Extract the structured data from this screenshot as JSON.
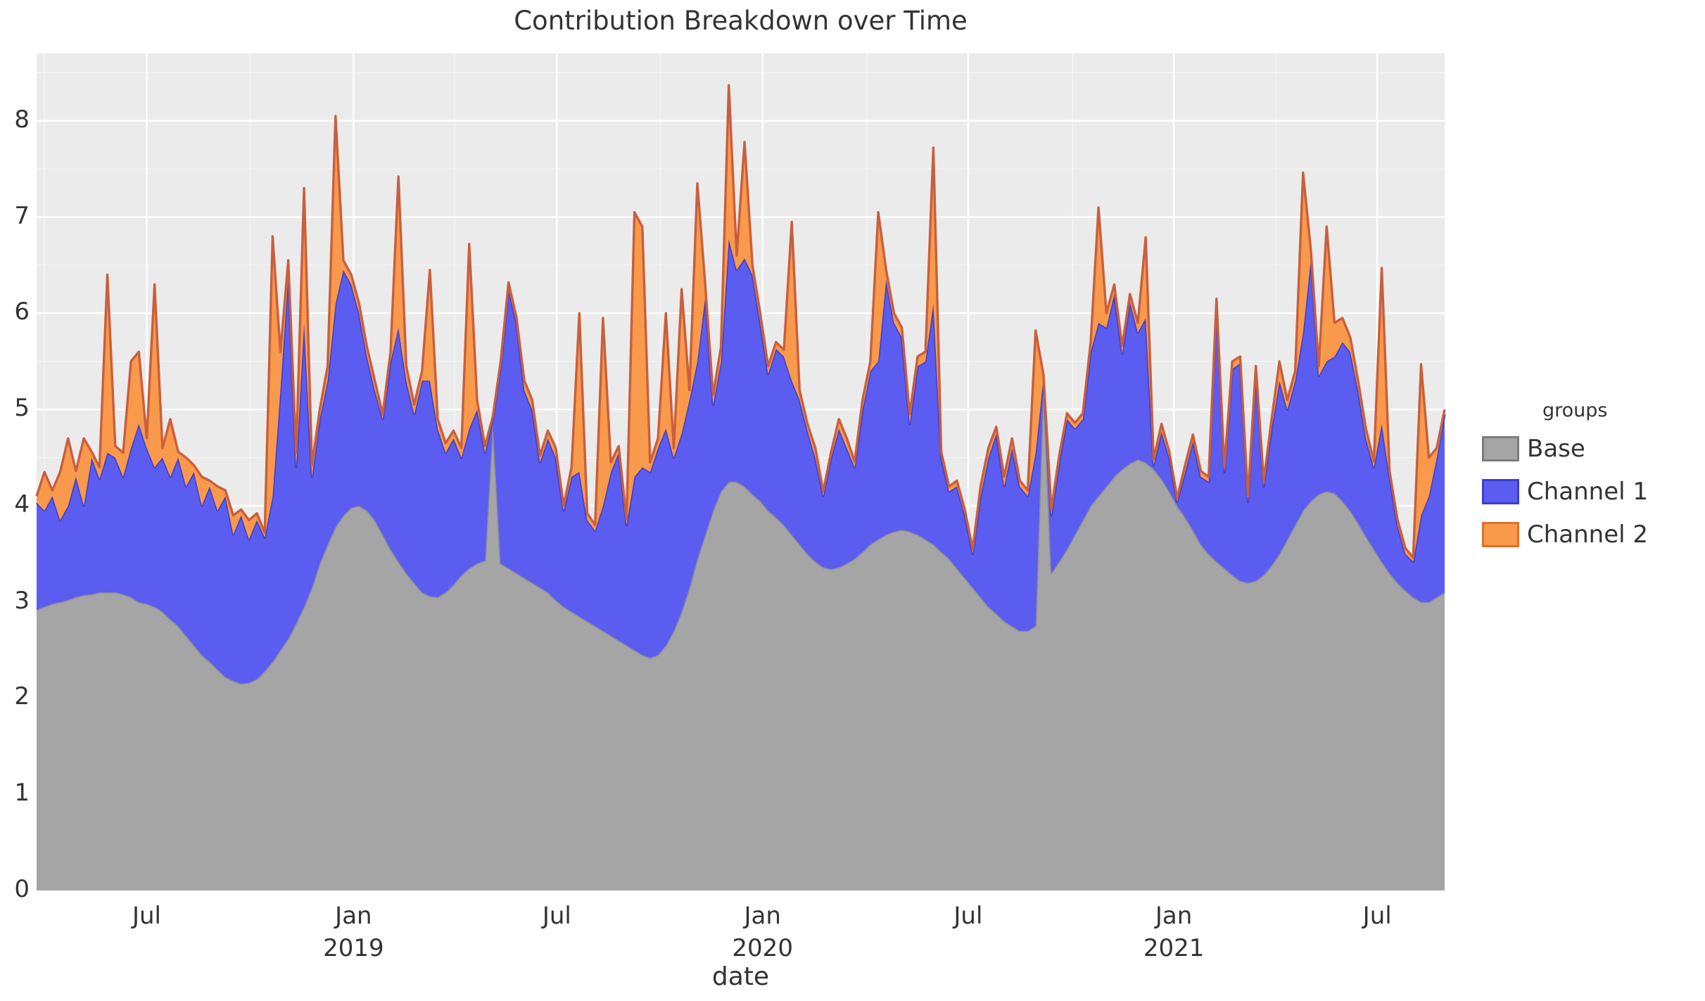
{
  "title": "Contribution Breakdown over Time",
  "axes": {
    "x_label": "date",
    "y_ticks": [
      0,
      1,
      2,
      3,
      4,
      5,
      6,
      7,
      8
    ],
    "y_max": 8.7,
    "x_ticks": [
      {
        "label": "Jul",
        "year": "",
        "week": 14.0
      },
      {
        "label": "Jan",
        "year": "2019",
        "week": 40.29
      },
      {
        "label": "Jul",
        "year": "",
        "week": 66.14
      },
      {
        "label": "Jan",
        "year": "2020",
        "week": 92.29
      },
      {
        "label": "Jul",
        "year": "",
        "week": 118.43
      },
      {
        "label": "Jan",
        "year": "2021",
        "week": 144.57
      },
      {
        "label": "Jul",
        "year": "",
        "week": 170.43
      }
    ],
    "x_minor_weeks": [
      1.0,
      27.14,
      53.14,
      79.29,
      105.57,
      131.71,
      157.57
    ],
    "grid_on": true
  },
  "legend": {
    "title": "groups",
    "items": [
      {
        "label": "Base",
        "fill": "#a5a5a5",
        "stroke": "#7c7c7c"
      },
      {
        "label": "Channel 1",
        "fill": "#5b5cf0",
        "stroke": "#3d3ecc"
      },
      {
        "label": "Channel 2",
        "fill": "#f9994b",
        "stroke": "#e0702a"
      }
    ]
  },
  "style": {
    "panel_bg": "#ebebeb",
    "grid_major": "#ffffff",
    "grid_minor": "rgba(255,255,255,0.55)",
    "base_fill": "#a5a5a5",
    "base_stroke": "#8d8d98",
    "ch1_fill": "#5b5cf0",
    "ch1_stroke": "#4442c6",
    "ch2_fill": "#f9994b",
    "ch2_stroke": "#c95f3d"
  },
  "chart_data": {
    "type": "area",
    "stacked": true,
    "title": "Contribution Breakdown over Time",
    "xlabel": "date",
    "ylabel": "",
    "ylim": [
      0,
      8.7
    ],
    "x_start_date": "2018-03-25",
    "x_interval": "weekly",
    "n_points": 180,
    "legend_position": "right",
    "series": [
      {
        "name": "Base",
        "values": [
          2.92,
          2.95,
          2.98,
          3.0,
          3.02,
          3.05,
          3.07,
          3.08,
          3.1,
          3.1,
          3.1,
          3.08,
          3.05,
          3.0,
          2.98,
          2.95,
          2.9,
          2.82,
          2.75,
          2.65,
          2.55,
          2.45,
          2.38,
          2.3,
          2.22,
          2.18,
          2.15,
          2.16,
          2.2,
          2.28,
          2.38,
          2.5,
          2.62,
          2.78,
          2.95,
          3.15,
          3.4,
          3.6,
          3.78,
          3.9,
          3.98,
          4.0,
          3.95,
          3.85,
          3.7,
          3.55,
          3.42,
          3.3,
          3.2,
          3.1,
          3.06,
          3.05,
          3.1,
          3.18,
          3.28,
          3.35,
          3.4,
          3.43,
          4.87,
          3.4,
          3.35,
          3.3,
          3.25,
          3.2,
          3.15,
          3.1,
          3.02,
          2.95,
          2.9,
          2.85,
          2.8,
          2.75,
          2.7,
          2.65,
          2.6,
          2.55,
          2.5,
          2.45,
          2.42,
          2.45,
          2.55,
          2.7,
          2.9,
          3.15,
          3.45,
          3.7,
          3.95,
          4.15,
          4.25,
          4.25,
          4.2,
          4.12,
          4.05,
          3.95,
          3.88,
          3.8,
          3.7,
          3.6,
          3.5,
          3.42,
          3.36,
          3.34,
          3.36,
          3.4,
          3.45,
          3.52,
          3.6,
          3.65,
          3.7,
          3.73,
          3.75,
          3.73,
          3.7,
          3.65,
          3.6,
          3.52,
          3.45,
          3.35,
          3.25,
          3.15,
          3.05,
          2.95,
          2.88,
          2.8,
          2.75,
          2.7,
          2.7,
          2.75,
          5.3,
          3.3,
          3.42,
          3.55,
          3.7,
          3.85,
          4.0,
          4.1,
          4.2,
          4.3,
          4.38,
          4.44,
          4.48,
          4.45,
          4.38,
          4.28,
          4.15,
          4.0,
          3.88,
          3.75,
          3.6,
          3.5,
          3.42,
          3.35,
          3.28,
          3.22,
          3.2,
          3.22,
          3.28,
          3.38,
          3.5,
          3.65,
          3.8,
          3.95,
          4.05,
          4.12,
          4.15,
          4.13,
          4.05,
          3.95,
          3.82,
          3.68,
          3.55,
          3.42,
          3.3,
          3.2,
          3.12,
          3.05,
          3.0,
          3.0,
          3.05,
          3.1
        ]
      },
      {
        "name": "Channel 1",
        "values": [
          1.11,
          1.0,
          1.12,
          0.85,
          0.98,
          1.25,
          0.93,
          1.42,
          1.18,
          1.45,
          1.4,
          1.22,
          1.55,
          1.85,
          1.62,
          1.45,
          1.6,
          1.48,
          1.75,
          1.55,
          1.8,
          1.55,
          1.82,
          1.65,
          1.88,
          1.52,
          1.75,
          1.49,
          1.65,
          1.39,
          1.72,
          2.7,
          3.78,
          1.62,
          2.95,
          1.15,
          1.5,
          1.7,
          2.32,
          2.55,
          2.32,
          2.0,
          1.6,
          1.35,
          1.2,
          1.95,
          2.43,
          2.0,
          1.75,
          2.2,
          2.24,
          1.75,
          1.45,
          1.52,
          1.22,
          1.45,
          1.6,
          1.12,
          0.03,
          2.05,
          2.9,
          2.6,
          1.95,
          1.8,
          1.3,
          1.6,
          1.48,
          1.0,
          1.4,
          1.5,
          1.05,
          0.99,
          1.3,
          1.7,
          1.95,
          1.25,
          1.8,
          1.95,
          1.93,
          2.15,
          2.25,
          1.8,
          1.85,
          1.95,
          2.05,
          2.47,
          1.1,
          1.35,
          2.52,
          2.2,
          2.37,
          2.28,
          1.85,
          1.42,
          1.75,
          1.75,
          1.6,
          1.5,
          1.28,
          1.08,
          0.74,
          1.16,
          1.44,
          1.2,
          0.95,
          1.48,
          1.8,
          1.85,
          2.65,
          2.17,
          2.0,
          1.12,
          1.75,
          1.85,
          2.5,
          0.98,
          0.7,
          0.85,
          0.65,
          0.35,
          1.05,
          1.55,
          1.87,
          1.4,
          1.85,
          1.5,
          1.4,
          1.8,
          0.03,
          0.6,
          1.03,
          1.35,
          1.1,
          1.05,
          1.6,
          1.8,
          1.65,
          1.9,
          1.2,
          1.68,
          1.32,
          1.5,
          0.04,
          0.49,
          0.35,
          0.04,
          0.47,
          0.92,
          0.7,
          0.75,
          2.68,
          1.0,
          2.14,
          2.26,
          0.84,
          2.15,
          0.92,
          1.42,
          1.8,
          1.35,
          1.5,
          1.85,
          2.52,
          1.23,
          1.35,
          1.42,
          1.65,
          1.65,
          1.38,
          1.02,
          0.85,
          1.43,
          1.0,
          0.6,
          0.38,
          0.37,
          0.9,
          1.1,
          1.45,
          1.85
        ]
      },
      {
        "name": "Channel 2",
        "values": [
          0.07,
          0.4,
          0.06,
          0.5,
          0.7,
          0.06,
          0.7,
          0.06,
          0.12,
          1.85,
          0.12,
          0.25,
          0.9,
          0.75,
          0.1,
          1.9,
          0.1,
          0.6,
          0.06,
          0.3,
          0.07,
          0.3,
          0.06,
          0.25,
          0.06,
          0.2,
          0.06,
          0.2,
          0.07,
          0.05,
          2.7,
          0.4,
          0.15,
          0.15,
          1.4,
          0.12,
          0.1,
          0.15,
          1.95,
          0.1,
          0.1,
          0.1,
          0.1,
          0.1,
          0.05,
          0.1,
          1.57,
          0.15,
          0.1,
          0.1,
          1.15,
          0.1,
          0.1,
          0.08,
          0.1,
          1.92,
          0.1,
          0.07,
          0.03,
          0.05,
          0.07,
          0.06,
          0.1,
          0.1,
          0.07,
          0.08,
          0.1,
          0.05,
          0.1,
          1.65,
          0.07,
          0.06,
          1.95,
          0.1,
          0.07,
          0.06,
          2.75,
          2.5,
          0.1,
          0.1,
          1.2,
          0.1,
          1.5,
          0.1,
          1.85,
          0.13,
          0.1,
          0.15,
          1.6,
          0.15,
          1.21,
          0.1,
          0.1,
          0.08,
          0.07,
          0.07,
          1.65,
          0.1,
          0.07,
          0.1,
          0.05,
          0.06,
          0.1,
          0.1,
          0.06,
          0.1,
          0.1,
          1.55,
          0.1,
          0.1,
          0.1,
          0.1,
          0.1,
          0.1,
          1.62,
          0.06,
          0.05,
          0.06,
          0.06,
          0.05,
          0.1,
          0.1,
          0.07,
          0.1,
          0.1,
          0.06,
          0.06,
          1.27,
          0.03,
          0.06,
          0.07,
          0.06,
          0.06,
          0.06,
          0.1,
          1.2,
          0.15,
          0.1,
          0.08,
          0.08,
          0.1,
          0.84,
          0.06,
          0.08,
          0.06,
          0.04,
          0.07,
          0.07,
          0.06,
          0.05,
          0.05,
          0.05,
          0.08,
          0.07,
          0.06,
          0.08,
          0.06,
          0.1,
          0.2,
          0.1,
          0.1,
          1.66,
          0.08,
          0.1,
          1.4,
          0.35,
          0.25,
          0.15,
          0.1,
          0.1,
          0.06,
          1.62,
          0.06,
          0.06,
          0.06,
          0.04,
          1.57,
          0.4,
          0.1,
          0.05
        ]
      }
    ]
  }
}
